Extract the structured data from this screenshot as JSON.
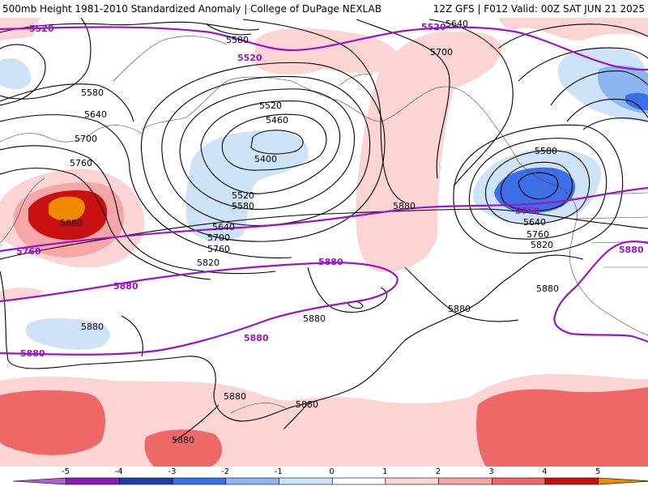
{
  "header": {
    "left_title": "500mb Height 1981-2010 Standardized Anomaly | College of DuPage NEXLAB",
    "right_title": "12Z GFS | F012 Valid: 00Z SAT JUN 21 2025"
  },
  "contour_labels": {
    "black": [
      "5580",
      "5580",
      "5640",
      "5700",
      "5760",
      "5880",
      "5520",
      "5460",
      "5400",
      "5520",
      "5580",
      "5640",
      "5700",
      "5760",
      "5820",
      "5700",
      "5880",
      "5880",
      "5880",
      "5880",
      "5880",
      "5880",
      "5880",
      "5580",
      "5640",
      "5760",
      "5820",
      "5880",
      "5640"
    ],
    "purple": [
      "5520",
      "5520",
      "5520",
      "5760",
      "5880",
      "5880",
      "5880",
      "5880",
      "5760",
      "5880"
    ]
  },
  "colorbar": {
    "ticks": [
      "-5",
      "-4",
      "-3",
      "-2",
      "-1",
      "0",
      "1",
      "2",
      "3",
      "4",
      "5"
    ],
    "colors": [
      "#b05fd0",
      "#8a19b8",
      "#1c3faa",
      "#3c6ee6",
      "#8cb6f0",
      "#cfe3f8",
      "#ffffff",
      "#fcd4d4",
      "#f6a6a6",
      "#ee6868",
      "#c81010",
      "#f08a00"
    ]
  }
}
